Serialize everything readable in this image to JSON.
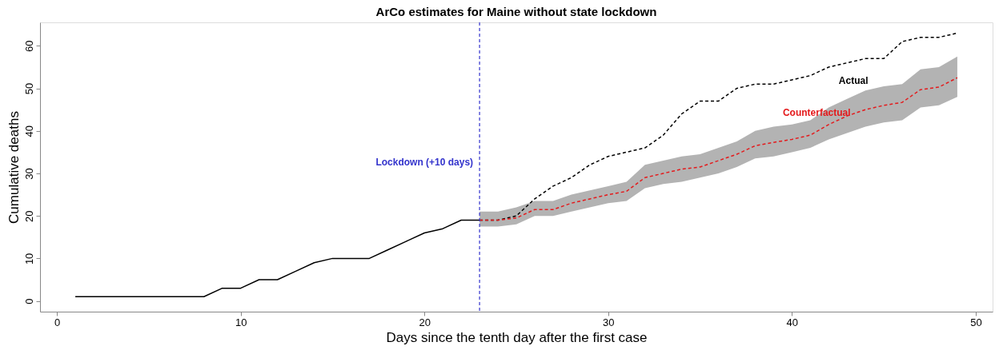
{
  "chart_data": {
    "type": "line",
    "title": "ArCo estimates for Maine without state lockdown",
    "xlabel": "Days since the tenth day after the first case",
    "ylabel": "Cumulative deaths",
    "xlim": [
      -0.92,
      50.92
    ],
    "ylim": [
      -2.52,
      65.52
    ],
    "xticks": [
      0,
      10,
      20,
      30,
      40,
      50
    ],
    "yticks": [
      0,
      10,
      20,
      30,
      40,
      50,
      60
    ],
    "grid": false,
    "marker": "none",
    "series": [
      {
        "color": "#000000",
        "line_style": "solid",
        "x": [
          1,
          2,
          3,
          4,
          5,
          6,
          7,
          8,
          9,
          10,
          11,
          12,
          13,
          14,
          15,
          16,
          17,
          18,
          19,
          20,
          21,
          22,
          23
        ],
        "values": [
          1,
          1,
          1,
          1,
          1,
          1,
          1,
          1,
          3,
          3,
          5,
          5,
          7,
          9,
          10,
          10,
          10,
          12,
          14,
          16,
          17,
          19,
          19
        ]
      },
      {
        "name": "Actual",
        "color": "#000000",
        "line_style": "dashed",
        "x": [
          23,
          24,
          25,
          26,
          27,
          28,
          29,
          30,
          31,
          32,
          33,
          34,
          35,
          36,
          37,
          38,
          39,
          40,
          41,
          42,
          43,
          44,
          45,
          46,
          47,
          48,
          49
        ],
        "values": [
          19,
          19,
          20,
          24,
          27,
          29,
          32,
          34,
          35,
          36,
          39,
          44,
          47,
          47,
          50,
          51,
          51,
          52,
          53,
          55,
          56,
          57,
          57,
          61,
          62,
          62,
          63
        ]
      },
      {
        "name": "Counterfactual",
        "color": "#e41a1c",
        "line_style": "dashed",
        "x": [
          23,
          24,
          25,
          26,
          27,
          28,
          29,
          30,
          31,
          32,
          33,
          34,
          35,
          36,
          37,
          38,
          39,
          40,
          41,
          42,
          43,
          44,
          45,
          46,
          47,
          48,
          49
        ],
        "values": [
          19,
          19,
          19.5,
          21.5,
          21.5,
          23,
          24,
          25,
          25.8,
          29,
          30,
          31,
          31.5,
          33,
          34.5,
          36.5,
          37.3,
          38,
          39,
          41.5,
          43.5,
          45,
          46,
          46.7,
          49.7,
          50.3,
          52.5
        ],
        "lower": [
          17.5,
          17.5,
          18,
          20,
          20,
          21,
          22,
          23,
          23.5,
          26.5,
          27.5,
          28,
          29,
          30,
          31.5,
          33.5,
          34,
          35,
          36,
          38,
          39.5,
          41,
          42,
          42.5,
          45.5,
          46,
          48
        ],
        "upper": [
          21,
          21,
          22,
          23.5,
          23.5,
          25,
          26,
          27,
          28,
          32,
          33,
          34,
          34.5,
          36,
          37.5,
          40,
          41,
          41.5,
          42.5,
          45.5,
          47.5,
          49.5,
          50.5,
          51,
          54.5,
          55,
          57.5
        ]
      }
    ],
    "ref_lines": [
      {
        "axis": "x",
        "value": 23,
        "label": "Lockdown (+10 days)",
        "color": "#3333cc",
        "line_style": "dashed"
      }
    ]
  }
}
